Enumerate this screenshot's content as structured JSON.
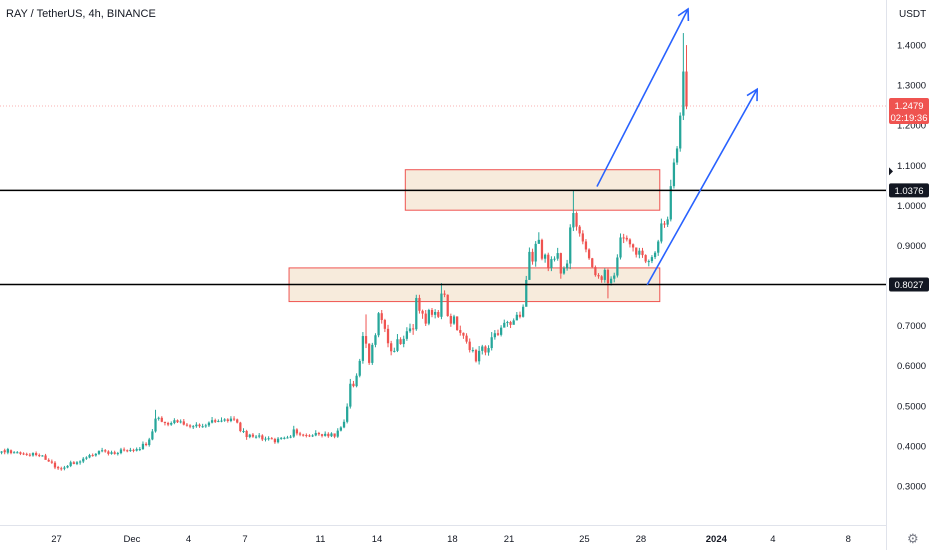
{
  "header": {
    "symbol_title": "RAY / TetherUS, 4h, BINANCE",
    "currency": "USDT"
  },
  "colors": {
    "up": "#26a69a",
    "down": "#ef5350",
    "zone_fill": "#f5e6d3",
    "zone_stroke": "#ef5350",
    "arrow": "#2962ff",
    "level_line": "#000000",
    "price_badge": "#ef5350"
  },
  "chart_data": {
    "type": "candlestick",
    "title": "RAY / TetherUS, 4h, BINANCE",
    "ylim": [
      0.22,
      1.5
    ],
    "y_ticks": [
      "0.3000",
      "0.4000",
      "0.5000",
      "0.6000",
      "0.7000",
      "0.8000",
      "0.9000",
      "1.0000",
      "1.1000",
      "1.2000",
      "1.3000",
      "1.4000"
    ],
    "y_tick_values": [
      0.3,
      0.4,
      0.5,
      0.6,
      0.7,
      0.8,
      0.9,
      1.0,
      1.1,
      1.2,
      1.3,
      1.4
    ],
    "x_ticks": [
      "27",
      "Dec",
      "4",
      "7",
      "11",
      "14",
      "18",
      "21",
      "25",
      "28",
      "2024",
      "4",
      "8"
    ],
    "x_tick_dates": [
      "2023-11-27",
      "2023-12-01",
      "2023-12-04",
      "2023-12-07",
      "2023-12-11",
      "2023-12-14",
      "2023-12-18",
      "2023-12-21",
      "2023-12-25",
      "2023-12-28",
      "2024-01-01",
      "2024-01-04",
      "2024-01-08"
    ],
    "x_range_dates": [
      "2023-11-24T00:00",
      "2024-01-10T00:00"
    ],
    "candle_interval_hours": 4,
    "candles": {
      "start": "2023-11-24T00:00",
      "close": [
        0.386,
        0.384,
        0.392,
        0.382,
        0.384,
        0.384,
        0.38,
        0.38,
        0.378,
        0.376,
        0.382,
        0.377,
        0.375,
        0.376,
        0.365,
        0.361,
        0.358,
        0.346,
        0.344,
        0.343,
        0.346,
        0.35,
        0.359,
        0.355,
        0.359,
        0.361,
        0.368,
        0.371,
        0.377,
        0.376,
        0.38,
        0.387,
        0.389,
        0.386,
        0.38,
        0.384,
        0.38,
        0.382,
        0.391,
        0.389,
        0.387,
        0.39,
        0.388,
        0.392,
        0.392,
        0.405,
        0.402,
        0.416,
        0.436,
        0.468,
        0.47,
        0.46,
        0.457,
        0.453,
        0.457,
        0.464,
        0.459,
        0.461,
        0.453,
        0.451,
        0.448,
        0.449,
        0.453,
        0.449,
        0.449,
        0.451,
        0.458,
        0.464,
        0.46,
        0.462,
        0.463,
        0.466,
        0.462,
        0.468,
        0.466,
        0.458,
        0.437,
        0.437,
        0.422,
        0.428,
        0.423,
        0.423,
        0.426,
        0.416,
        0.418,
        0.419,
        0.417,
        0.409,
        0.418,
        0.42,
        0.42,
        0.421,
        0.423,
        0.441,
        0.431,
        0.428,
        0.427,
        0.426,
        0.425,
        0.426,
        0.432,
        0.429,
        0.425,
        0.43,
        0.424,
        0.431,
        0.423,
        0.438,
        0.446,
        0.46,
        0.498,
        0.555,
        0.549,
        0.575,
        0.612,
        0.674,
        0.655,
        0.607,
        0.652,
        0.676,
        0.731,
        0.714,
        0.692,
        0.656,
        0.636,
        0.637,
        0.666,
        0.654,
        0.667,
        0.686,
        0.693,
        0.691,
        0.769,
        0.737,
        0.73,
        0.705,
        0.739,
        0.727,
        0.734,
        0.722,
        0.78,
        0.777,
        0.724,
        0.705,
        0.723,
        0.689,
        0.682,
        0.675,
        0.66,
        0.639,
        0.639,
        0.611,
        0.637,
        0.648,
        0.633,
        0.644,
        0.671,
        0.681,
        0.677,
        0.695,
        0.707,
        0.709,
        0.702,
        0.713,
        0.727,
        0.722,
        0.747,
        0.814,
        0.884,
        0.86,
        0.904,
        0.914,
        0.867,
        0.877,
        0.844,
        0.866,
        0.867,
        0.881,
        0.83,
        0.843,
        0.855,
        0.945,
        0.981,
        0.947,
        0.93,
        0.91,
        0.89,
        0.868,
        0.846,
        0.826,
        0.823,
        0.814,
        0.839,
        0.806,
        0.817,
        0.825,
        0.87,
        0.92,
        0.919,
        0.915,
        0.903,
        0.895,
        0.877,
        0.887,
        0.876,
        0.86,
        0.861,
        0.871,
        0.882,
        0.91,
        0.955,
        0.952,
        0.965,
        1.048,
        1.107,
        1.142,
        1.224,
        1.334,
        1.247
      ],
      "open": [
        0.383,
        0.389,
        0.383,
        0.389,
        0.384,
        0.384,
        0.384,
        0.381,
        0.38,
        0.378,
        0.376,
        0.382,
        0.377,
        0.375,
        0.376,
        0.365,
        0.361,
        0.358,
        0.347,
        0.344,
        0.343,
        0.346,
        0.35,
        0.359,
        0.355,
        0.359,
        0.361,
        0.368,
        0.371,
        0.377,
        0.376,
        0.38,
        0.387,
        0.389,
        0.386,
        0.38,
        0.384,
        0.38,
        0.382,
        0.391,
        0.389,
        0.387,
        0.39,
        0.388,
        0.392,
        0.392,
        0.405,
        0.402,
        0.416,
        0.436,
        0.468,
        0.47,
        0.46,
        0.457,
        0.453,
        0.457,
        0.464,
        0.459,
        0.461,
        0.453,
        0.451,
        0.448,
        0.449,
        0.453,
        0.449,
        0.449,
        0.451,
        0.458,
        0.464,
        0.46,
        0.462,
        0.463,
        0.466,
        0.462,
        0.468,
        0.466,
        0.458,
        0.437,
        0.437,
        0.422,
        0.428,
        0.423,
        0.423,
        0.426,
        0.416,
        0.418,
        0.419,
        0.417,
        0.409,
        0.418,
        0.42,
        0.42,
        0.421,
        0.423,
        0.441,
        0.431,
        0.428,
        0.427,
        0.426,
        0.425,
        0.426,
        0.432,
        0.429,
        0.425,
        0.43,
        0.424,
        0.431,
        0.423,
        0.438,
        0.446,
        0.46,
        0.498,
        0.555,
        0.549,
        0.575,
        0.612,
        0.674,
        0.655,
        0.607,
        0.652,
        0.676,
        0.731,
        0.714,
        0.692,
        0.656,
        0.636,
        0.637,
        0.666,
        0.654,
        0.667,
        0.686,
        0.693,
        0.691,
        0.769,
        0.737,
        0.73,
        0.705,
        0.739,
        0.727,
        0.734,
        0.722,
        0.78,
        0.777,
        0.724,
        0.705,
        0.723,
        0.689,
        0.682,
        0.675,
        0.66,
        0.639,
        0.639,
        0.611,
        0.637,
        0.648,
        0.633,
        0.644,
        0.671,
        0.681,
        0.677,
        0.695,
        0.707,
        0.709,
        0.702,
        0.713,
        0.727,
        0.722,
        0.747,
        0.814,
        0.884,
        0.86,
        0.904,
        0.914,
        0.867,
        0.877,
        0.844,
        0.866,
        0.867,
        0.881,
        0.83,
        0.843,
        0.855,
        0.945,
        0.981,
        0.947,
        0.93,
        0.91,
        0.89,
        0.868,
        0.846,
        0.826,
        0.823,
        0.814,
        0.839,
        0.806,
        0.817,
        0.825,
        0.87,
        0.92,
        0.919,
        0.915,
        0.903,
        0.895,
        0.877,
        0.887,
        0.876,
        0.86,
        0.861,
        0.871,
        0.882,
        0.91,
        0.955,
        0.952,
        0.965,
        1.048,
        1.107,
        1.142,
        1.224,
        1.334
      ],
      "high": [
        0.387,
        0.393,
        0.395,
        0.391,
        0.387,
        0.387,
        0.386,
        0.384,
        0.383,
        0.382,
        0.384,
        0.386,
        0.381,
        0.377,
        0.38,
        0.369,
        0.366,
        0.362,
        0.35,
        0.348,
        0.35,
        0.352,
        0.363,
        0.362,
        0.362,
        0.364,
        0.372,
        0.374,
        0.38,
        0.381,
        0.382,
        0.389,
        0.395,
        0.392,
        0.389,
        0.388,
        0.388,
        0.385,
        0.395,
        0.396,
        0.391,
        0.395,
        0.393,
        0.396,
        0.397,
        0.411,
        0.409,
        0.42,
        0.442,
        0.49,
        0.473,
        0.474,
        0.46,
        0.46,
        0.461,
        0.469,
        0.466,
        0.466,
        0.467,
        0.457,
        0.454,
        0.452,
        0.459,
        0.456,
        0.455,
        0.455,
        0.461,
        0.472,
        0.468,
        0.466,
        0.471,
        0.469,
        0.469,
        0.474,
        0.474,
        0.468,
        0.46,
        0.444,
        0.44,
        0.43,
        0.432,
        0.427,
        0.432,
        0.429,
        0.423,
        0.424,
        0.422,
        0.42,
        0.422,
        0.422,
        0.423,
        0.425,
        0.427,
        0.45,
        0.444,
        0.435,
        0.43,
        0.431,
        0.429,
        0.429,
        0.439,
        0.435,
        0.43,
        0.436,
        0.434,
        0.434,
        0.43,
        0.444,
        0.449,
        0.466,
        0.506,
        0.567,
        0.562,
        0.581,
        0.617,
        0.684,
        0.728,
        0.656,
        0.657,
        0.681,
        0.734,
        0.739,
        0.717,
        0.702,
        0.662,
        0.645,
        0.679,
        0.671,
        0.675,
        0.696,
        0.705,
        0.704,
        0.777,
        0.777,
        0.74,
        0.739,
        0.742,
        0.744,
        0.741,
        0.739,
        0.806,
        0.788,
        0.778,
        0.73,
        0.727,
        0.723,
        0.7,
        0.683,
        0.681,
        0.668,
        0.646,
        0.642,
        0.649,
        0.652,
        0.651,
        0.651,
        0.684,
        0.689,
        0.69,
        0.701,
        0.715,
        0.712,
        0.712,
        0.718,
        0.734,
        0.735,
        0.753,
        0.824,
        0.895,
        0.892,
        0.911,
        0.933,
        0.917,
        0.88,
        0.882,
        0.873,
        0.873,
        0.894,
        0.882,
        0.848,
        0.864,
        0.953,
        1.037,
        0.985,
        0.951,
        0.938,
        0.916,
        0.893,
        0.869,
        0.85,
        0.831,
        0.826,
        0.843,
        0.842,
        0.823,
        0.832,
        0.878,
        0.93,
        0.929,
        0.925,
        0.918,
        0.905,
        0.895,
        0.894,
        0.894,
        0.878,
        0.865,
        0.876,
        0.886,
        0.914,
        0.967,
        0.961,
        0.972,
        1.064,
        1.117,
        1.148,
        1.232,
        1.43,
        1.4
      ],
      "low": [
        0.379,
        0.379,
        0.379,
        0.379,
        0.381,
        0.381,
        0.377,
        0.377,
        0.375,
        0.373,
        0.373,
        0.374,
        0.372,
        0.373,
        0.373,
        0.36,
        0.355,
        0.342,
        0.34,
        0.338,
        0.339,
        0.344,
        0.347,
        0.354,
        0.352,
        0.353,
        0.357,
        0.365,
        0.369,
        0.373,
        0.373,
        0.377,
        0.384,
        0.383,
        0.376,
        0.378,
        0.378,
        0.376,
        0.379,
        0.386,
        0.384,
        0.385,
        0.384,
        0.386,
        0.387,
        0.39,
        0.399,
        0.398,
        0.414,
        0.433,
        0.463,
        0.459,
        0.451,
        0.449,
        0.45,
        0.454,
        0.457,
        0.456,
        0.451,
        0.448,
        0.444,
        0.442,
        0.445,
        0.445,
        0.445,
        0.445,
        0.447,
        0.456,
        0.457,
        0.459,
        0.459,
        0.46,
        0.458,
        0.459,
        0.462,
        0.456,
        0.434,
        0.432,
        0.415,
        0.419,
        0.42,
        0.418,
        0.419,
        0.412,
        0.411,
        0.413,
        0.416,
        0.405,
        0.406,
        0.415,
        0.416,
        0.418,
        0.419,
        0.42,
        0.426,
        0.424,
        0.423,
        0.421,
        0.422,
        0.422,
        0.424,
        0.425,
        0.421,
        0.423,
        0.42,
        0.422,
        0.419,
        0.42,
        0.436,
        0.444,
        0.456,
        0.493,
        0.546,
        0.546,
        0.571,
        0.605,
        0.644,
        0.602,
        0.602,
        0.646,
        0.671,
        0.705,
        0.684,
        0.646,
        0.626,
        0.633,
        0.634,
        0.652,
        0.646,
        0.662,
        0.682,
        0.677,
        0.687,
        0.73,
        0.717,
        0.699,
        0.701,
        0.721,
        0.718,
        0.719,
        0.716,
        0.771,
        0.722,
        0.697,
        0.702,
        0.687,
        0.675,
        0.667,
        0.655,
        0.633,
        0.633,
        0.608,
        0.603,
        0.628,
        0.626,
        0.625,
        0.638,
        0.665,
        0.674,
        0.673,
        0.703,
        0.697,
        0.694,
        0.709,
        0.715,
        0.718,
        0.72,
        0.806,
        0.855,
        0.852,
        0.847,
        0.906,
        0.863,
        0.857,
        0.836,
        0.836,
        0.86,
        0.862,
        0.817,
        0.827,
        0.837,
        0.841,
        0.936,
        0.937,
        0.922,
        0.903,
        0.883,
        0.864,
        0.844,
        0.822,
        0.817,
        0.807,
        0.807,
        0.768,
        0.8,
        0.808,
        0.82,
        0.865,
        0.906,
        0.91,
        0.895,
        0.885,
        0.87,
        0.868,
        0.869,
        0.856,
        0.848,
        0.856,
        0.866,
        0.874,
        0.905,
        0.944,
        0.946,
        0.96,
        1.042,
        1.101,
        1.134,
        1.213,
        1.24
      ]
    },
    "horizontal_levels": [
      {
        "value": 1.0376,
        "label": "1.0376"
      },
      {
        "value": 0.8027,
        "label": "0.8027"
      }
    ],
    "zones": [
      {
        "name": "upper-zone",
        "x_start": "2023-12-15T12:00",
        "x_end": "2023-12-29T00:00",
        "y_low": 0.988,
        "y_high": 1.089
      },
      {
        "name": "lower-zone",
        "x_start": "2023-12-09T08:00",
        "x_end": "2023-12-29T00:00",
        "y_low": 0.76,
        "y_high": 0.844
      }
    ],
    "arrows": [
      {
        "name": "upper-arrow",
        "from_date": "2023-12-25T16:00",
        "from_value": 1.047,
        "to_date": "2023-12-30T12:00",
        "to_value": 1.49
      },
      {
        "name": "lower-arrow",
        "from_date": "2023-12-28T08:00",
        "from_value": 0.802,
        "to_date": "2024-01-03T04:00",
        "to_value": 1.29
      }
    ],
    "last_price": {
      "value": 1.2479,
      "label": "1.2479",
      "countdown": "02:19:36"
    }
  }
}
